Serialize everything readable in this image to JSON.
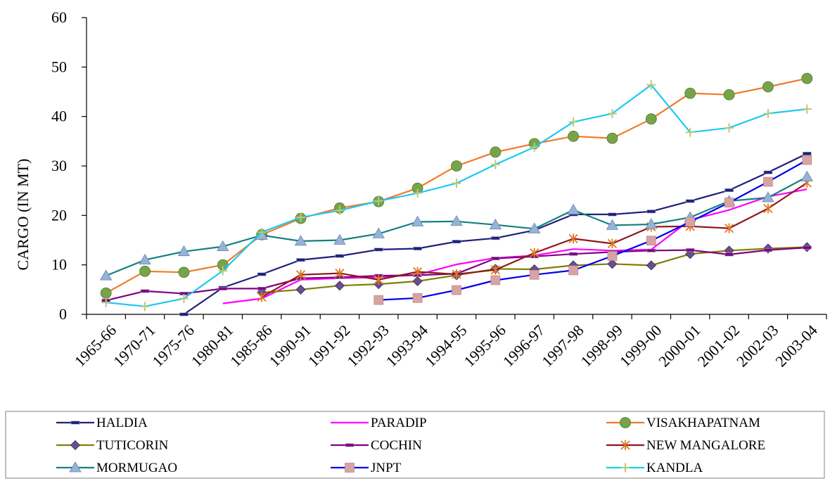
{
  "chart_data": {
    "type": "line",
    "title": "",
    "xlabel": "",
    "ylabel": "CARGO (IN MT)",
    "ylim": [
      0,
      60
    ],
    "yticks": [
      0,
      10,
      20,
      30,
      40,
      50,
      60
    ],
    "grid": false,
    "legend_position": "bottom",
    "categories": [
      "1965-66",
      "1970-71",
      "1975-76",
      "1980-81",
      "1985-86",
      "1990-91",
      "1991-92",
      "1992-93",
      "1993-94",
      "1994-95",
      "1995-96",
      "1996-97",
      "1997-98",
      "1998-99",
      "1999-00",
      "2000-01",
      "2001-02",
      "2002-03",
      "2003-04"
    ],
    "series": [
      {
        "name": "HALDIA",
        "color": "#1f1f7a",
        "marker": "dash",
        "values": [
          null,
          null,
          0,
          5.4,
          8.1,
          11,
          11.8,
          13.1,
          13.3,
          14.7,
          15.4,
          17,
          20.2,
          20.2,
          20.8,
          22.9,
          25.1,
          28.7,
          32.5
        ]
      },
      {
        "name": "PARADIP",
        "color": "#ff00ff",
        "marker": "none",
        "values": [
          null,
          null,
          null,
          2.2,
          3.2,
          7,
          7.3,
          7.5,
          8,
          10.1,
          11.4,
          11.9,
          13.2,
          12.9,
          13.1,
          19.1,
          21.1,
          23.8,
          25.3
        ]
      },
      {
        "name": "VISAKHAPATNAM",
        "color": "#f07a28",
        "marker": "circle",
        "marker_color": "#77a34a",
        "values": [
          4.3,
          8.7,
          8.5,
          10,
          16.1,
          19.4,
          21.5,
          22.8,
          25.5,
          30,
          32.8,
          34.5,
          36,
          35.6,
          39.5,
          44.7,
          44.4,
          46,
          47.7
        ]
      },
      {
        "name": "TUTICORIN",
        "color": "#7f7f00",
        "marker": "diamond",
        "marker_color": "#6a4f8c",
        "values": [
          null,
          null,
          null,
          null,
          4.4,
          5,
          5.8,
          6.1,
          6.7,
          7.9,
          9.2,
          9.1,
          9.9,
          10.2,
          9.9,
          12.2,
          12.9,
          13.3,
          13.6
        ]
      },
      {
        "name": "COCHIN",
        "color": "#800080",
        "marker": "dash",
        "values": [
          2.8,
          4.7,
          4.2,
          5.2,
          5.2,
          7.3,
          7.5,
          7.8,
          7.9,
          8.2,
          11.3,
          11.7,
          12.2,
          12.6,
          12.9,
          13,
          12.1,
          13,
          13.5
        ]
      },
      {
        "name": "NEW MANGALORE",
        "color": "#8b1a1a",
        "marker": "star",
        "marker_color": "#e07820",
        "values": [
          null,
          null,
          null,
          null,
          3.5,
          8,
          8.3,
          7,
          8.6,
          8.1,
          9,
          12.4,
          15.3,
          14.3,
          17.7,
          17.8,
          17.4,
          21.4,
          26.6
        ]
      },
      {
        "name": "MORMUGAO",
        "color": "#158080",
        "marker": "triangle",
        "marker_color": "#95b3d7",
        "values": [
          7.8,
          11,
          12.7,
          13.7,
          16,
          14.8,
          15,
          16.3,
          18.7,
          18.8,
          18.1,
          17.3,
          21.1,
          18,
          18.2,
          19.6,
          22.9,
          23.6,
          27.8
        ]
      },
      {
        "name": "JNPT",
        "color": "#0000ee",
        "marker": "square",
        "marker_color": "#d9a3a3",
        "values": [
          null,
          null,
          null,
          null,
          null,
          null,
          null,
          2.9,
          3.3,
          4.9,
          6.9,
          8,
          8.9,
          11.8,
          14.9,
          18.7,
          22.6,
          26.8,
          31.2
        ]
      },
      {
        "name": "KANDLA",
        "color": "#1ec8f0",
        "marker": "plus",
        "marker_color": "#b9c97a",
        "values": [
          2.4,
          1.6,
          3.2,
          8.8,
          16.6,
          19.6,
          21,
          22.9,
          24.5,
          26.5,
          30.3,
          33.8,
          38.9,
          40.6,
          46.4,
          36.8,
          37.7,
          40.6,
          41.5
        ]
      }
    ]
  }
}
